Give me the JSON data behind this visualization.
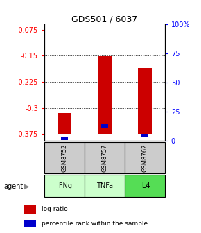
{
  "title": "GDS501 / 6037",
  "samples": [
    "GSM8752",
    "GSM8757",
    "GSM8762"
  ],
  "agents": [
    "IFNg",
    "TNFa",
    "IL4"
  ],
  "log_ratios": [
    -0.315,
    -0.152,
    -0.185
  ],
  "percentile_ranks_pct": [
    2,
    13,
    5
  ],
  "ylim_left": [
    -0.395,
    -0.06
  ],
  "ylim_right": [
    0,
    100
  ],
  "yticks_left": [
    -0.375,
    -0.3,
    -0.225,
    -0.15,
    -0.075
  ],
  "yticks_right": [
    0,
    25,
    50,
    75,
    100
  ],
  "ytick_labels_left": [
    "-0.375",
    "-0.3",
    "-0.225",
    "-0.15",
    "-0.075"
  ],
  "ytick_labels_right": [
    "0",
    "25",
    "50",
    "75",
    "100%"
  ],
  "gridlines_at": [
    -0.15,
    -0.225,
    -0.3
  ],
  "bar_color": "#cc0000",
  "percentile_color": "#0000cc",
  "sample_bg_color": "#cccccc",
  "agent_bg_colors": [
    "#ccffcc",
    "#ccffcc",
    "#55dd55"
  ],
  "bar_width": 0.35,
  "baseline": -0.375,
  "legend_log_ratio": "log ratio",
  "legend_percentile": "percentile rank within the sample",
  "title_fontsize": 9,
  "tick_fontsize": 7,
  "sample_fontsize": 6,
  "agent_fontsize": 7
}
